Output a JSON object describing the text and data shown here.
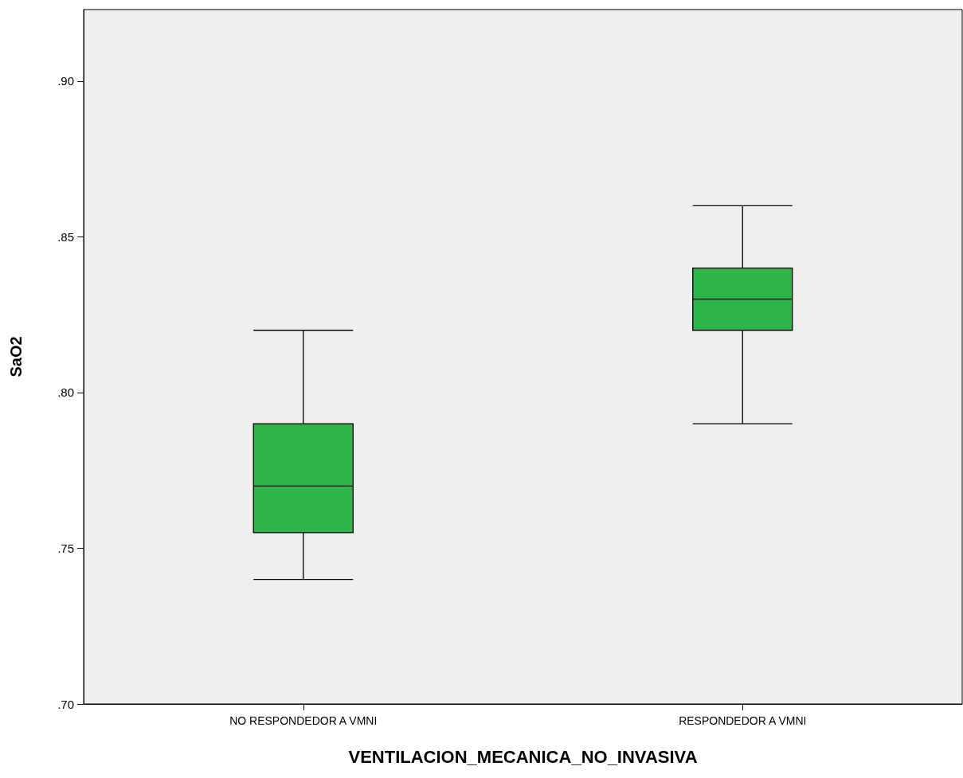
{
  "chart_data": {
    "type": "box",
    "xlabel": "VENTILACION_MECANICA_NO_INVASIVA",
    "ylabel": "SaO2",
    "categories": [
      "NO RESPONDEDOR A VMNI",
      "RESPONDEDOR A VMNI"
    ],
    "boxes": [
      {
        "low": 0.74,
        "q1": 0.755,
        "median": 0.77,
        "q3": 0.79,
        "high": 0.82
      },
      {
        "low": 0.79,
        "q1": 0.82,
        "median": 0.83,
        "q3": 0.84,
        "high": 0.86
      }
    ],
    "color": "#2db54a",
    "ylim": [
      0.7,
      0.923
    ],
    "yticks": [
      {
        "value": 0.7,
        "label": ".70"
      },
      {
        "value": 0.75,
        "label": ".75"
      },
      {
        "value": 0.8,
        "label": ".80"
      },
      {
        "value": 0.85,
        "label": ".85"
      },
      {
        "value": 0.9,
        "label": ".90"
      }
    ],
    "grid": false
  }
}
